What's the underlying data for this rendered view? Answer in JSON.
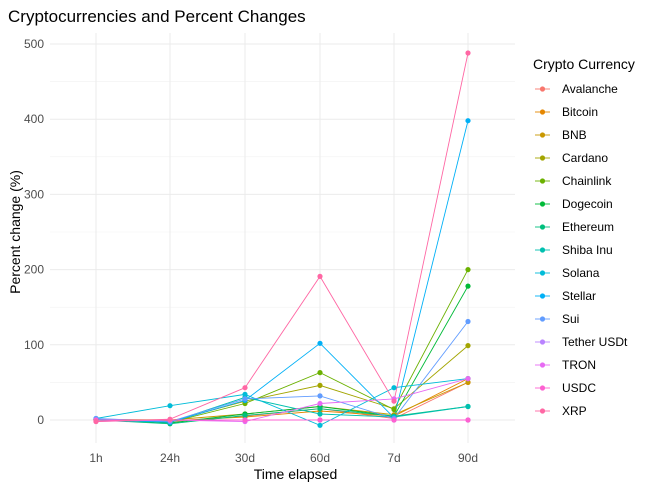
{
  "chart_data": {
    "type": "line",
    "title": "Cryptocurrencies and Percent Changes",
    "xlabel": "Time elapsed",
    "ylabel": "Percent change (%)",
    "categories": [
      "1h",
      "24h",
      "30d",
      "60d",
      "7d",
      "90d"
    ],
    "y_ticks": [
      "0",
      "100",
      "200",
      "300",
      "400",
      "500"
    ],
    "ylim": [
      -10,
      500
    ],
    "grid": true,
    "legend_title": "Crypto Currency",
    "legend_position": "right",
    "series": [
      {
        "name": "Avalanche",
        "color": "#F8766D",
        "values": [
          0,
          -2,
          5,
          15,
          2,
          50
        ]
      },
      {
        "name": "Bitcoin",
        "color": "#E58700",
        "values": [
          0,
          -1,
          4,
          12,
          5,
          55
        ]
      },
      {
        "name": "BNB",
        "color": "#C99800",
        "values": [
          1,
          0,
          8,
          18,
          7,
          50
        ]
      },
      {
        "name": "Cardano",
        "color": "#A3A500",
        "values": [
          0,
          -2,
          25,
          46,
          15,
          99
        ]
      },
      {
        "name": "Chainlink",
        "color": "#6BB100",
        "values": [
          1,
          -3,
          22,
          63,
          14,
          200
        ]
      },
      {
        "name": "Dogecoin",
        "color": "#00BA38",
        "values": [
          1,
          -4,
          8,
          18,
          5,
          178
        ]
      },
      {
        "name": "Ethereum",
        "color": "#00BF7D",
        "values": [
          0,
          -5,
          6,
          15,
          5,
          18
        ]
      },
      {
        "name": "Shiba Inu",
        "color": "#00C0AF",
        "values": [
          0,
          -3,
          30,
          8,
          4,
          18
        ]
      },
      {
        "name": "Solana",
        "color": "#00BCD8",
        "values": [
          2,
          19,
          34,
          -7,
          43,
          55
        ]
      },
      {
        "name": "Stellar",
        "color": "#00B0F6",
        "values": [
          1,
          -3,
          26,
          102,
          3,
          398
        ]
      },
      {
        "name": "Sui",
        "color": "#619CFF",
        "values": [
          2,
          -2,
          28,
          32,
          2,
          131
        ]
      },
      {
        "name": "Tether USDt",
        "color": "#B983FF",
        "values": [
          0,
          0,
          0,
          0,
          0,
          0
        ]
      },
      {
        "name": "TRON",
        "color": "#E76BF3",
        "values": [
          -2,
          0,
          -2,
          22,
          28,
          55
        ]
      },
      {
        "name": "USDC",
        "color": "#FD61D1",
        "values": [
          0,
          0,
          0,
          0,
          0,
          0
        ]
      },
      {
        "name": "XRP",
        "color": "#FF67A4",
        "values": [
          -2,
          1,
          43,
          191,
          25,
          488
        ]
      }
    ]
  }
}
